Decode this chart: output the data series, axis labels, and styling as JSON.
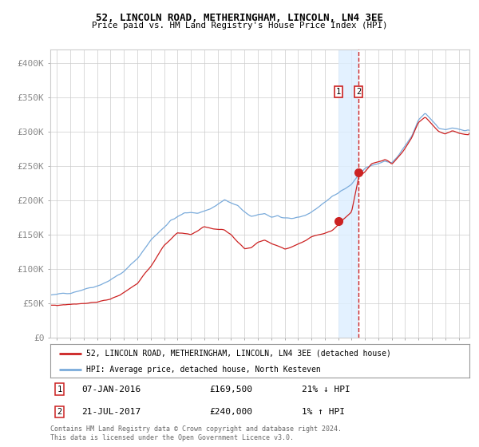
{
  "title1": "52, LINCOLN ROAD, METHERINGHAM, LINCOLN, LN4 3EE",
  "title2": "Price paid vs. HM Land Registry's House Price Index (HPI)",
  "ylabel_ticks": [
    "£0",
    "£50K",
    "£100K",
    "£150K",
    "£200K",
    "£250K",
    "£300K",
    "£350K",
    "£400K"
  ],
  "ylabel_values": [
    0,
    50000,
    100000,
    150000,
    200000,
    250000,
    300000,
    350000,
    400000
  ],
  "ylim": [
    0,
    420000
  ],
  "xlim_start": 1994.5,
  "xlim_end": 2025.8,
  "hpi_color": "#7aabdb",
  "price_color": "#cc2222",
  "transaction1_date": 2016.03,
  "transaction1_price": 169500,
  "transaction2_date": 2017.54,
  "transaction2_price": 240000,
  "transaction1_label": "07-JAN-2016",
  "transaction1_amount": "£169,500",
  "transaction1_hpi": "21% ↓ HPI",
  "transaction2_label": "21-JUL-2017",
  "transaction2_amount": "£240,000",
  "transaction2_hpi": "1% ↑ HPI",
  "legend1": "52, LINCOLN ROAD, METHERINGHAM, LINCOLN, LN4 3EE (detached house)",
  "legend2": "HPI: Average price, detached house, North Kesteven",
  "footnote": "Contains HM Land Registry data © Crown copyright and database right 2024.\nThis data is licensed under the Open Government Licence v3.0.",
  "bg_color": "#ffffff",
  "grid_color": "#cccccc",
  "shade_color": "#ddeeff"
}
